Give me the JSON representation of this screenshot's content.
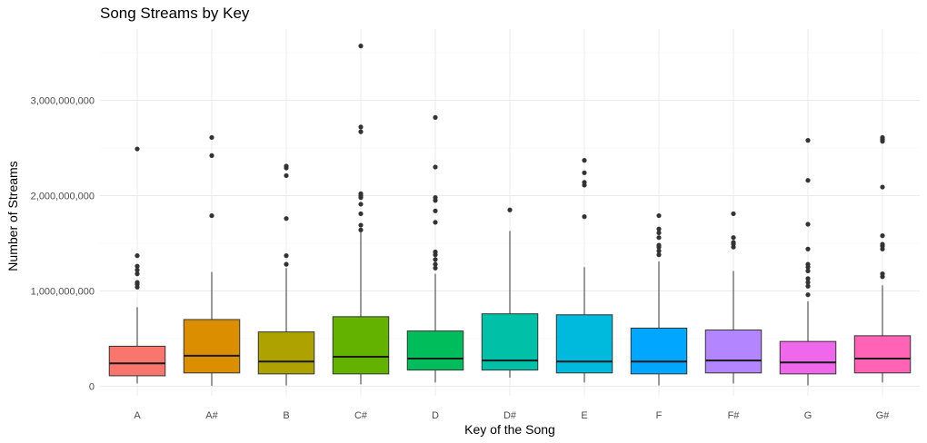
{
  "chart_data": {
    "type": "boxplot",
    "title": "Song Streams by Key",
    "xlabel": "Key of the Song",
    "ylabel": "Number of Streams",
    "ylim": [
      0,
      3800000000
    ],
    "yticks": [
      0,
      1000000000,
      2000000000,
      3000000000
    ],
    "ytick_labels": [
      "0",
      "1,000,000,000",
      "2,000,000,000",
      "3,000,000,000"
    ],
    "grid": true,
    "legend": "none",
    "categories": [
      "A",
      "A#",
      "B",
      "C#",
      "D",
      "D#",
      "E",
      "F",
      "F#",
      "G",
      "G#"
    ],
    "colors": [
      "#F8766D",
      "#DB8E00",
      "#AEA200",
      "#64B200",
      "#00BD5C",
      "#00C1A7",
      "#00BADE",
      "#00A6FF",
      "#B385FF",
      "#EF67EB",
      "#FF63B6"
    ],
    "boxes": [
      {
        "key": "A",
        "whisker_low": 30000000,
        "q1": 110000000,
        "median": 240000000,
        "q3": 420000000,
        "whisker_high": 830000000,
        "outliers": [
          1040000000,
          1070000000,
          1090000000,
          1180000000,
          1220000000,
          1260000000,
          1370000000,
          2490000000
        ]
      },
      {
        "key": "A#",
        "whisker_low": 5000000,
        "q1": 140000000,
        "median": 320000000,
        "q3": 700000000,
        "whisker_high": 1200000000,
        "outliers": [
          1790000000,
          2420000000,
          2610000000
        ]
      },
      {
        "key": "B",
        "whisker_low": 10000000,
        "q1": 130000000,
        "median": 260000000,
        "q3": 570000000,
        "whisker_high": 1240000000,
        "outliers": [
          1280000000,
          1370000000,
          1760000000,
          2210000000,
          2290000000,
          2310000000
        ]
      },
      {
        "key": "C#",
        "whisker_low": 20000000,
        "q1": 130000000,
        "median": 310000000,
        "q3": 730000000,
        "whisker_high": 1630000000,
        "outliers": [
          1640000000,
          1690000000,
          1810000000,
          1910000000,
          1980000000,
          2000000000,
          2020000000,
          2670000000,
          2720000000,
          3570000000
        ]
      },
      {
        "key": "D",
        "whisker_low": 40000000,
        "q1": 170000000,
        "median": 290000000,
        "q3": 580000000,
        "whisker_high": 1180000000,
        "outliers": [
          1240000000,
          1280000000,
          1330000000,
          1380000000,
          1410000000,
          1720000000,
          1840000000,
          1950000000,
          1980000000,
          2300000000,
          2820000000
        ]
      },
      {
        "key": "D#",
        "whisker_low": 90000000,
        "q1": 170000000,
        "median": 270000000,
        "q3": 760000000,
        "whisker_high": 1630000000,
        "outliers": [
          1850000000
        ]
      },
      {
        "key": "E",
        "whisker_low": 40000000,
        "q1": 140000000,
        "median": 260000000,
        "q3": 750000000,
        "whisker_high": 1250000000,
        "outliers": [
          1780000000,
          2110000000,
          2140000000,
          2240000000,
          2370000000
        ]
      },
      {
        "key": "F",
        "whisker_low": 10000000,
        "q1": 130000000,
        "median": 260000000,
        "q3": 610000000,
        "whisker_high": 1310000000,
        "outliers": [
          1380000000,
          1420000000,
          1460000000,
          1480000000,
          1560000000,
          1610000000,
          1650000000,
          1790000000
        ]
      },
      {
        "key": "F#",
        "whisker_low": 30000000,
        "q1": 140000000,
        "median": 270000000,
        "q3": 590000000,
        "whisker_high": 1210000000,
        "outliers": [
          1460000000,
          1490000000,
          1510000000,
          1560000000,
          1810000000
        ]
      },
      {
        "key": "G",
        "whisker_low": 10000000,
        "q1": 130000000,
        "median": 250000000,
        "q3": 470000000,
        "whisker_high": 890000000,
        "outliers": [
          960000000,
          1050000000,
          1090000000,
          1130000000,
          1210000000,
          1250000000,
          1280000000,
          1440000000,
          1700000000,
          2160000000,
          2580000000
        ]
      },
      {
        "key": "G#",
        "whisker_low": 40000000,
        "q1": 140000000,
        "median": 290000000,
        "q3": 530000000,
        "whisker_high": 1060000000,
        "outliers": [
          1150000000,
          1180000000,
          1440000000,
          1470000000,
          1490000000,
          1580000000,
          2090000000,
          2570000000,
          2590000000,
          2610000000
        ]
      }
    ]
  }
}
